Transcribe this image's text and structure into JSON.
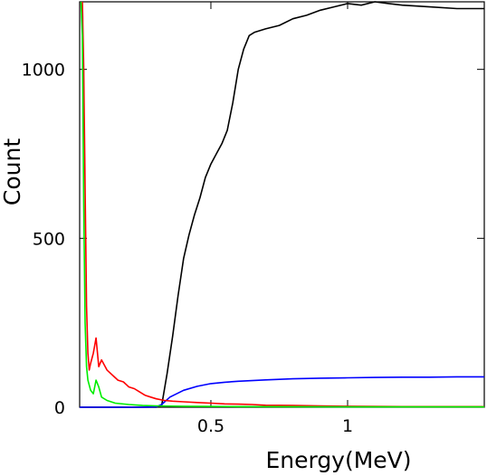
{
  "chart_data": {
    "type": "line",
    "title": "",
    "xlabel": "Energy(MeV)",
    "ylabel": "Count",
    "xlim": [
      0.02,
      1.5
    ],
    "ylim": [
      0,
      1200
    ],
    "x_ticks": [
      0.5,
      1
    ],
    "x_tick_labels": [
      "0.5",
      "1"
    ],
    "y_ticks": [
      0,
      500,
      1000
    ],
    "y_tick_labels": [
      "0",
      "500",
      "1000"
    ],
    "grid": false,
    "legend": "none",
    "series": [
      {
        "color": "#000000",
        "x": [
          0.02,
          0.25,
          0.3,
          0.32,
          0.34,
          0.36,
          0.38,
          0.4,
          0.42,
          0.44,
          0.46,
          0.48,
          0.5,
          0.52,
          0.54,
          0.56,
          0.58,
          0.6,
          0.62,
          0.64,
          0.66,
          0.7,
          0.75,
          0.8,
          0.85,
          0.9,
          0.95,
          1.0,
          1.05,
          1.1,
          1.15,
          1.2,
          1.3,
          1.4,
          1.5
        ],
        "y": [
          0,
          0,
          0,
          5,
          100,
          210,
          330,
          440,
          510,
          570,
          620,
          680,
          720,
          750,
          780,
          820,
          900,
          1000,
          1060,
          1100,
          1110,
          1120,
          1130,
          1150,
          1160,
          1175,
          1185,
          1195,
          1190,
          1200,
          1195,
          1190,
          1185,
          1180,
          1180
        ]
      },
      {
        "color": "#0000ff",
        "x": [
          0.02,
          0.25,
          0.3,
          0.32,
          0.35,
          0.4,
          0.45,
          0.5,
          0.55,
          0.6,
          0.7,
          0.8,
          0.9,
          1.0,
          1.1,
          1.2,
          1.3,
          1.4,
          1.5
        ],
        "y": [
          0,
          0,
          1,
          8,
          30,
          50,
          62,
          70,
          74,
          77,
          81,
          84,
          86,
          87,
          88,
          89,
          89,
          90,
          90
        ],
        "smooth": true
      },
      {
        "color": "#ff0000",
        "x": [
          0.03,
          0.035,
          0.04,
          0.045,
          0.05,
          0.055,
          0.06,
          0.07,
          0.08,
          0.09,
          0.1,
          0.12,
          0.14,
          0.16,
          0.18,
          0.2,
          0.22,
          0.24,
          0.26,
          0.28,
          0.3,
          0.33,
          0.36,
          0.4,
          0.45,
          0.5,
          0.55,
          0.6,
          0.65,
          0.7,
          0.8,
          0.9,
          1.0,
          1.2,
          1.5
        ],
        "y": [
          1200,
          1000,
          650,
          300,
          160,
          110,
          130,
          160,
          205,
          120,
          140,
          110,
          95,
          80,
          75,
          60,
          55,
          45,
          35,
          30,
          25,
          20,
          18,
          16,
          14,
          12,
          10,
          9,
          8,
          6,
          5,
          4,
          3,
          2,
          2
        ]
      },
      {
        "color": "#00ee00",
        "x": [
          0.025,
          0.03,
          0.035,
          0.04,
          0.045,
          0.05,
          0.06,
          0.07,
          0.08,
          0.09,
          0.1,
          0.12,
          0.15,
          0.2,
          0.25,
          0.3,
          0.4,
          0.6,
          1.0,
          1.5
        ],
        "y": [
          1200,
          1100,
          600,
          250,
          120,
          80,
          50,
          40,
          80,
          60,
          30,
          20,
          12,
          8,
          5,
          4,
          3,
          2,
          1,
          1
        ]
      }
    ]
  }
}
